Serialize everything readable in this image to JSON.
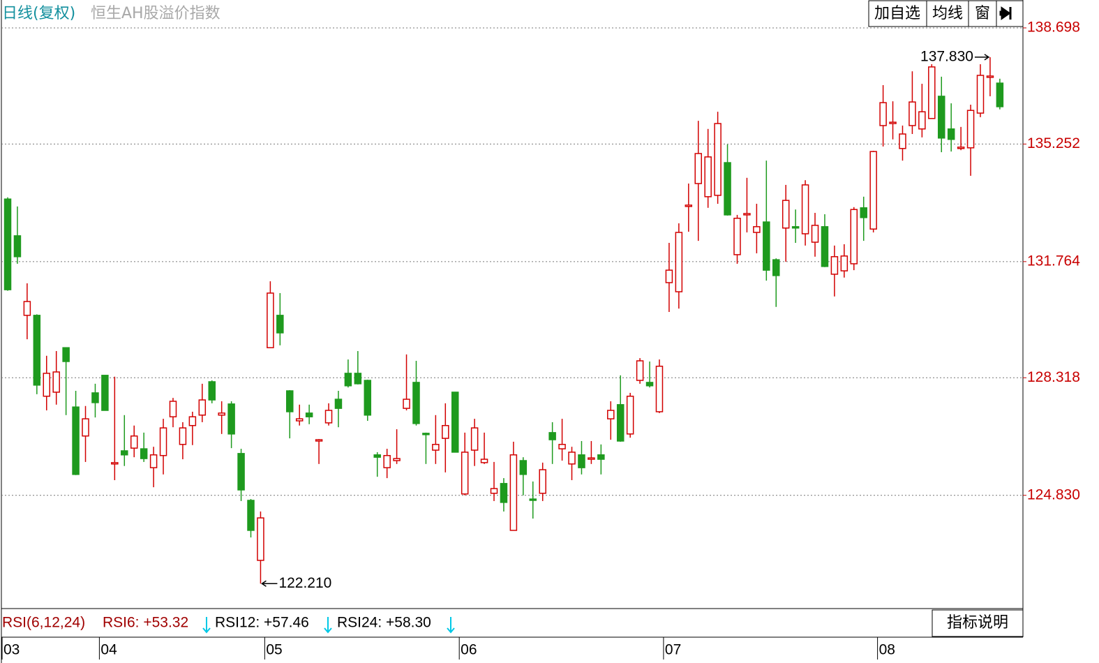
{
  "chart_data": {
    "type": "candlestick",
    "title": "日线(复权)",
    "subtitle": "恒生AH股溢价指数",
    "toolbar": [
      "加自选",
      "均线",
      "窗"
    ],
    "up_color": "#d20000",
    "down_color": "#1e9a1e",
    "grid": true,
    "ylim": [
      121.47,
      139.36
    ],
    "yticks": [
      138.698,
      135.252,
      131.764,
      128.318,
      {
        "value": 124.83,
        "label": "124.830"
      }
    ],
    "annotations": {
      "max": "137.830",
      "min": "122.210"
    },
    "categories": [
      "03",
      null,
      null,
      null,
      null,
      null,
      null,
      null,
      null,
      null,
      "04",
      null,
      null,
      null,
      null,
      null,
      null,
      null,
      null,
      null,
      null,
      null,
      null,
      null,
      null,
      null,
      null,
      "05",
      null,
      null,
      null,
      null,
      null,
      null,
      null,
      null,
      null,
      null,
      null,
      null,
      null,
      null,
      null,
      null,
      null,
      null,
      null,
      "06",
      null,
      null,
      null,
      null,
      null,
      null,
      null,
      null,
      null,
      null,
      null,
      null,
      null,
      null,
      null,
      null,
      null,
      null,
      null,
      null,
      "07",
      null,
      null,
      null,
      null,
      null,
      null,
      null,
      null,
      null,
      null,
      null,
      null,
      null,
      null,
      null,
      null,
      null,
      null,
      null,
      null,
      null,
      "08",
      null,
      null,
      null,
      null,
      null,
      null,
      null,
      null,
      null,
      null,
      null,
      null
    ],
    "open": [
      133.62,
      132.53,
      130.17,
      130.17,
      127.77,
      127.89,
      129.21,
      127.45,
      126.59,
      127.87,
      128.39,
      125.76,
      126.15,
      126.23,
      126.21,
      125.65,
      126.01,
      127.16,
      126.34,
      126.9,
      127.21,
      128.2,
      127.21,
      127.54,
      126.07,
      124.68,
      122.9,
      129.21,
      130.17,
      127.93,
      127.04,
      127.27,
      126.44,
      126.98,
      127.68,
      128.45,
      128.45,
      128.24,
      126.03,
      125.65,
      125.86,
      127.41,
      128.18,
      126.67,
      126.17,
      126.52,
      127.89,
      124.87,
      126.17,
      125.8,
      124.89,
      125.18,
      123.79,
      125.86,
      124.72,
      124.89,
      126.69,
      126.21,
      125.76,
      126.03,
      125.9,
      126.03,
      127.1,
      127.52,
      126.65,
      128.24,
      128.18,
      127.31,
      131.14,
      130.87,
      133.4,
      134.08,
      133.69,
      133.73,
      134.7,
      131.97,
      133.15,
      132.63,
      132.94,
      131.82,
      132.76,
      132.8,
      132.59,
      132.34,
      132.8,
      131.39,
      131.49,
      131.7,
      133.36,
      132.73,
      135.8,
      135.86,
      135.12,
      135.8,
      135.7,
      136.01,
      136.67,
      135.7,
      135.12,
      135.14,
      136.17,
      137.23,
      137.06
    ],
    "high": [
      133.67,
      133.4,
      131.12,
      130.2,
      128.97,
      129.11,
      129.21,
      127.93,
      127.48,
      128.14,
      128.39,
      128.35,
      127.21,
      126.9,
      126.69,
      126.27,
      127.1,
      127.72,
      127.0,
      127.31,
      128.14,
      128.24,
      127.62,
      127.62,
      126.21,
      124.72,
      124.35,
      131.18,
      130.83,
      127.95,
      127.52,
      127.52,
      126.5,
      127.56,
      127.93,
      128.86,
      129.11,
      128.26,
      126.11,
      126.21,
      126.79,
      129.01,
      128.82,
      126.69,
      127.21,
      127.56,
      127.9,
      126.69,
      127.1,
      126.69,
      125.82,
      125.34,
      126.42,
      125.96,
      125.24,
      125.8,
      127.0,
      127.1,
      126.27,
      126.44,
      126.44,
      126.34,
      127.62,
      128.39,
      127.87,
      128.9,
      128.8,
      128.86,
      132.32,
      132.9,
      134.08,
      135.94,
      135.7,
      136.21,
      135.24,
      133.15,
      134.25,
      133.48,
      134.76,
      131.86,
      134.04,
      133.31,
      134.18,
      133.21,
      133.17,
      132.24,
      132.28,
      133.38,
      133.69,
      135.05,
      137.0,
      136.52,
      135.8,
      137.41,
      137.04,
      137.62,
      137.25,
      136.46,
      135.76,
      136.42,
      137.62,
      137.83,
      137.19
    ],
    "low": [
      130.9,
      131.7,
      129.46,
      127.83,
      127.35,
      127.52,
      127.21,
      125.43,
      125.82,
      127.14,
      127.35,
      125.28,
      125.7,
      125.96,
      125.82,
      125.07,
      125.45,
      126.85,
      125.9,
      126.32,
      127.0,
      127.56,
      126.65,
      126.23,
      124.66,
      123.58,
      122.21,
      129.2,
      129.28,
      126.52,
      126.9,
      126.94,
      125.76,
      126.9,
      126.85,
      128.03,
      128.12,
      127.04,
      125.38,
      125.34,
      125.76,
      127.35,
      126.9,
      125.76,
      125.76,
      125.51,
      126.1,
      124.83,
      125.7,
      125.76,
      124.66,
      124.35,
      123.78,
      124.83,
      124.14,
      124.66,
      125.76,
      125.86,
      125.28,
      125.45,
      125.76,
      125.45,
      126.48,
      126.42,
      126.54,
      128.14,
      128.03,
      127.27,
      130.27,
      130.37,
      132.65,
      132.38,
      133.36,
      133.48,
      133.13,
      131.7,
      132.63,
      132.01,
      131.2,
      130.42,
      131.76,
      132.32,
      132.24,
      131.91,
      131.6,
      130.73,
      131.29,
      131.51,
      132.38,
      132.63,
      135.18,
      135.39,
      134.76,
      135.55,
      135.45,
      136.0,
      135.01,
      135.03,
      135.07,
      134.31,
      136.05,
      136.67,
      136.28
    ],
    "close": [
      130.93,
      131.91,
      130.58,
      128.1,
      128.45,
      128.49,
      128.8,
      125.45,
      127.1,
      127.58,
      127.35,
      125.8,
      126.03,
      126.59,
      125.92,
      126.03,
      126.83,
      127.62,
      126.83,
      127.16,
      127.66,
      127.66,
      127.27,
      126.65,
      124.99,
      123.79,
      124.16,
      130.83,
      129.65,
      127.31,
      127.1,
      127.16,
      126.48,
      127.35,
      127.41,
      128.08,
      128.14,
      127.21,
      125.96,
      126.01,
      125.92,
      127.68,
      126.96,
      126.63,
      126.34,
      126.9,
      126.11,
      126.11,
      126.83,
      125.9,
      125.03,
      124.62,
      126.03,
      125.45,
      124.68,
      125.59,
      126.48,
      126.34,
      126.11,
      125.65,
      125.94,
      125.9,
      127.35,
      126.44,
      127.77,
      128.82,
      128.08,
      128.66,
      131.51,
      132.63,
      133.44,
      134.97,
      134.87,
      135.86,
      133.15,
      133.05,
      133.19,
      132.8,
      131.51,
      131.35,
      133.58,
      132.76,
      134.04,
      132.84,
      131.62,
      131.91,
      131.93,
      133.31,
      133.07,
      135.03,
      136.48,
      135.9,
      135.55,
      136.5,
      136.21,
      137.54,
      135.43,
      135.39,
      135.16,
      136.25,
      137.29,
      137.27,
      136.36
    ],
    "indicator": {
      "name": "RSI(6,12,24)",
      "items": [
        "RSI6: +53.32",
        "RSI12: +57.46",
        "RSI24: +58.30"
      ],
      "button": "指标说明"
    }
  }
}
